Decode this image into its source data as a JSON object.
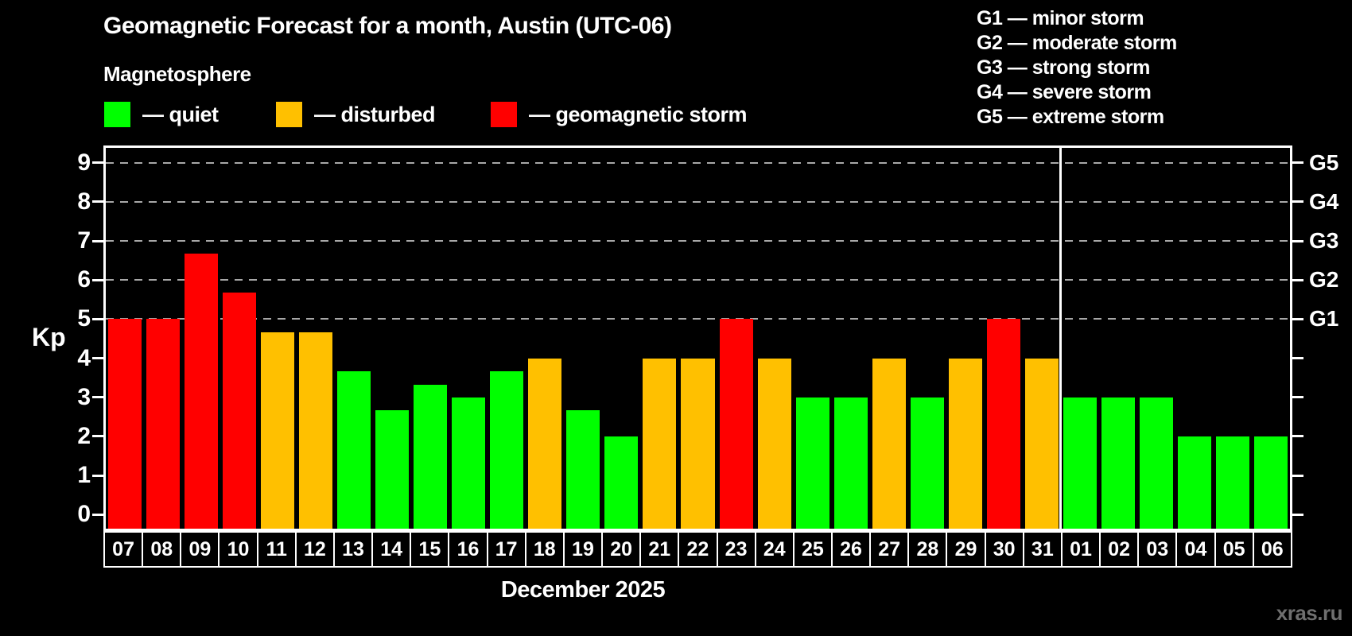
{
  "header": {
    "title": "Geomagnetic Forecast for a month, Austin (UTC-06)",
    "subtitle": "Magnetosphere"
  },
  "legend": {
    "items": [
      {
        "status": "quiet",
        "label": "— quiet",
        "color": "#00ff00"
      },
      {
        "status": "disturbed",
        "label": "— disturbed",
        "color": "#ffc000"
      },
      {
        "status": "storm",
        "label": "— geomagnetic storm",
        "color": "#ff0000"
      }
    ]
  },
  "g_legend": {
    "lines": [
      "G1 — minor storm",
      "G2 — moderate storm",
      "G3 — strong storm",
      "G4 — severe storm",
      "G5 — extreme storm"
    ]
  },
  "watermark": {
    "text": "xras.ru"
  },
  "chart_data": {
    "type": "bar",
    "title": "Geomagnetic Forecast for a month, Austin (UTC-06)",
    "subtitle": "Magnetosphere",
    "ylabel": "Kp",
    "xlabel": "December 2025",
    "categories": [
      "07",
      "08",
      "09",
      "10",
      "11",
      "12",
      "13",
      "14",
      "15",
      "16",
      "17",
      "18",
      "19",
      "20",
      "21",
      "22",
      "23",
      "24",
      "25",
      "26",
      "27",
      "28",
      "29",
      "30",
      "31",
      "01",
      "02",
      "03",
      "04",
      "05",
      "06"
    ],
    "values": [
      5,
      5,
      6.67,
      5.67,
      4.67,
      4.67,
      3.67,
      2.67,
      3.33,
      3,
      3.67,
      4,
      2.67,
      2,
      4,
      4,
      5,
      4,
      3,
      3,
      4,
      3,
      4,
      5,
      4,
      3,
      3,
      3,
      2,
      2,
      2
    ],
    "statuses": [
      "storm",
      "storm",
      "storm",
      "storm",
      "disturbed",
      "disturbed",
      "quiet",
      "quiet",
      "quiet",
      "quiet",
      "quiet",
      "disturbed",
      "quiet",
      "quiet",
      "disturbed",
      "disturbed",
      "storm",
      "disturbed",
      "quiet",
      "quiet",
      "disturbed",
      "quiet",
      "disturbed",
      "storm",
      "disturbed",
      "quiet",
      "quiet",
      "quiet",
      "quiet",
      "quiet",
      "quiet"
    ],
    "colors": {
      "quiet": "#00ff00",
      "disturbed": "#ffc000",
      "storm": "#ff0000"
    },
    "ylim": [
      -0.36,
      9.38
    ],
    "yticks": [
      0,
      1,
      2,
      3,
      4,
      5,
      6,
      7,
      8,
      9
    ],
    "gridline_levels": [
      5,
      6,
      7,
      8,
      9
    ],
    "right_axis": [
      {
        "kp": 5,
        "label": "G1"
      },
      {
        "kp": 6,
        "label": "G2"
      },
      {
        "kp": 7,
        "label": "G3"
      },
      {
        "kp": 8,
        "label": "G4"
      },
      {
        "kp": 9,
        "label": "G5"
      }
    ],
    "divider_after_category_index": 24,
    "legend_position": "top-left",
    "grid": "dashed horizontal lines at G1–G5 levels only"
  }
}
